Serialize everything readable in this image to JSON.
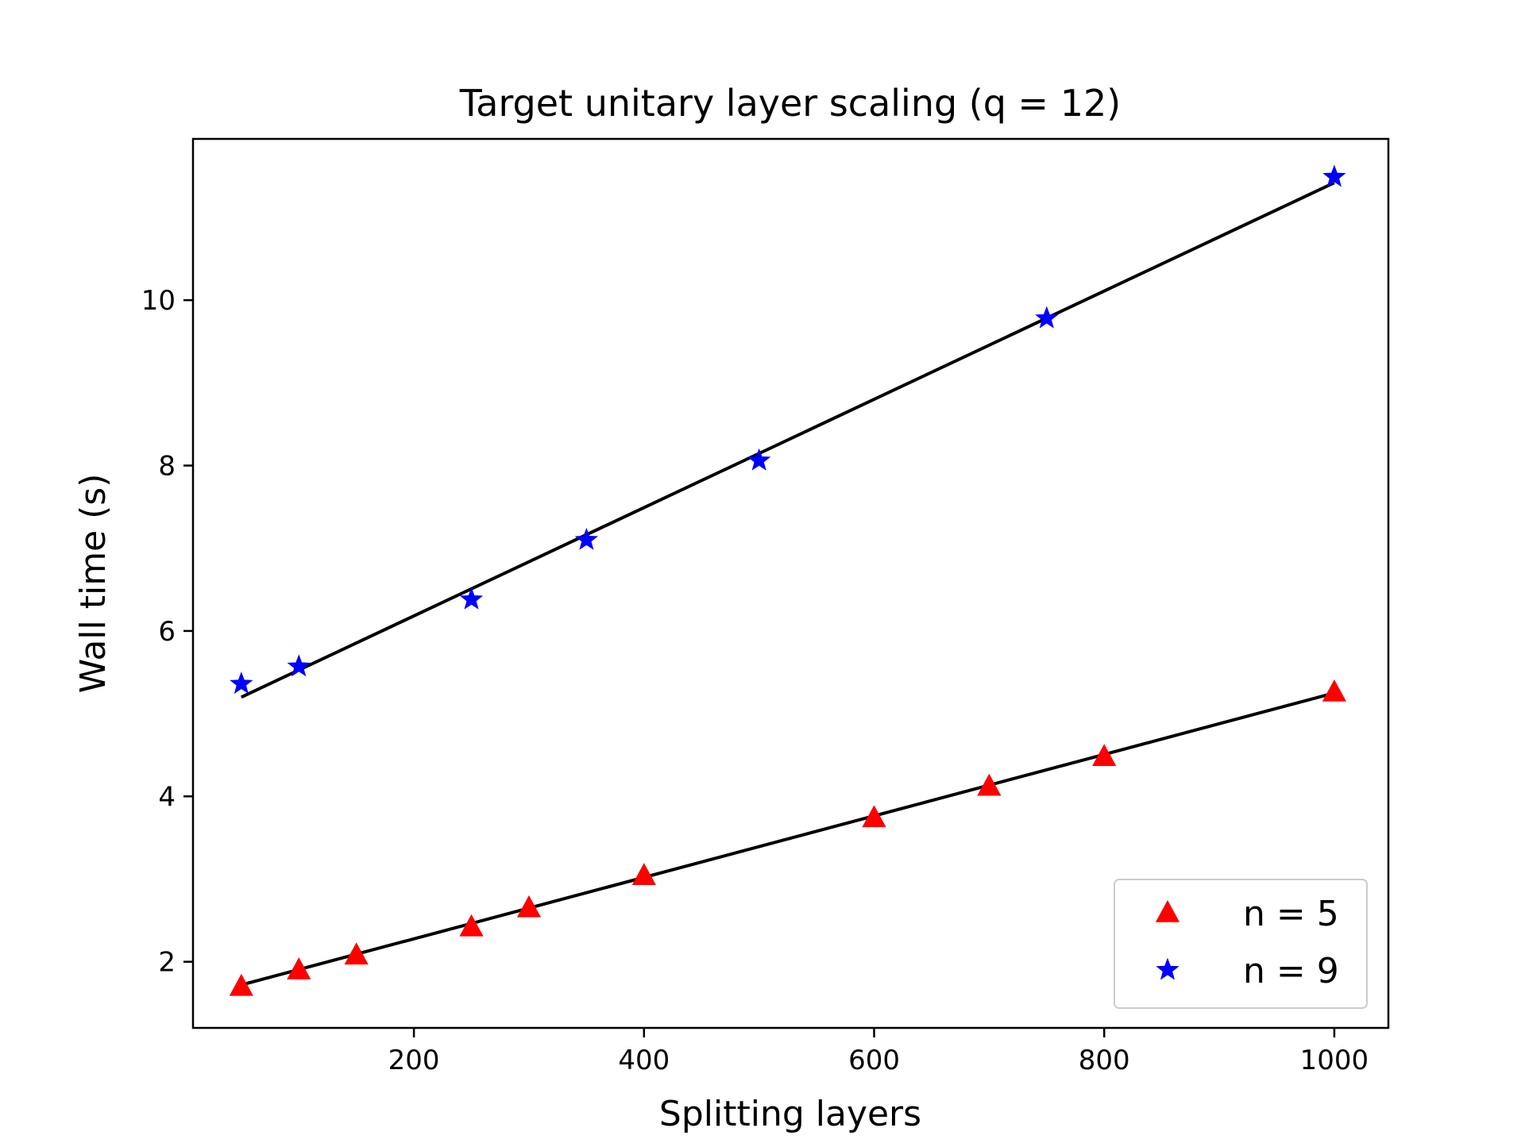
{
  "chart_data": {
    "type": "scatter",
    "title": "Target unitary layer scaling (q = 12)",
    "xlabel": "Splitting layers",
    "ylabel": "Wall time (s)",
    "xlim": [
      8,
      1047
    ],
    "ylim": [
      1.2,
      11.95
    ],
    "xticks": [
      200,
      400,
      600,
      800,
      1000
    ],
    "yticks": [
      2,
      4,
      6,
      8,
      10
    ],
    "grid": false,
    "legend_position": "lower-right",
    "series": [
      {
        "name": "n = 5",
        "marker": "triangle",
        "color": "#ff0000",
        "x": [
          50,
          100,
          150,
          250,
          300,
          400,
          600,
          700,
          800,
          1000
        ],
        "y": [
          1.7,
          1.9,
          2.08,
          2.42,
          2.65,
          3.04,
          3.74,
          4.12,
          4.48,
          5.26
        ],
        "fit": {
          "x": [
            50,
            1000
          ],
          "y": [
            1.72,
            5.25
          ],
          "color": "#000000"
        }
      },
      {
        "name": "n = 9",
        "marker": "star",
        "color": "#0000ff",
        "x": [
          50,
          100,
          250,
          350,
          500,
          750,
          1000
        ],
        "y": [
          5.36,
          5.57,
          6.38,
          7.1,
          8.06,
          9.78,
          11.49
        ],
        "fit": {
          "x": [
            50,
            1000
          ],
          "y": [
            5.2,
            11.42
          ],
          "color": "#000000"
        }
      }
    ]
  }
}
